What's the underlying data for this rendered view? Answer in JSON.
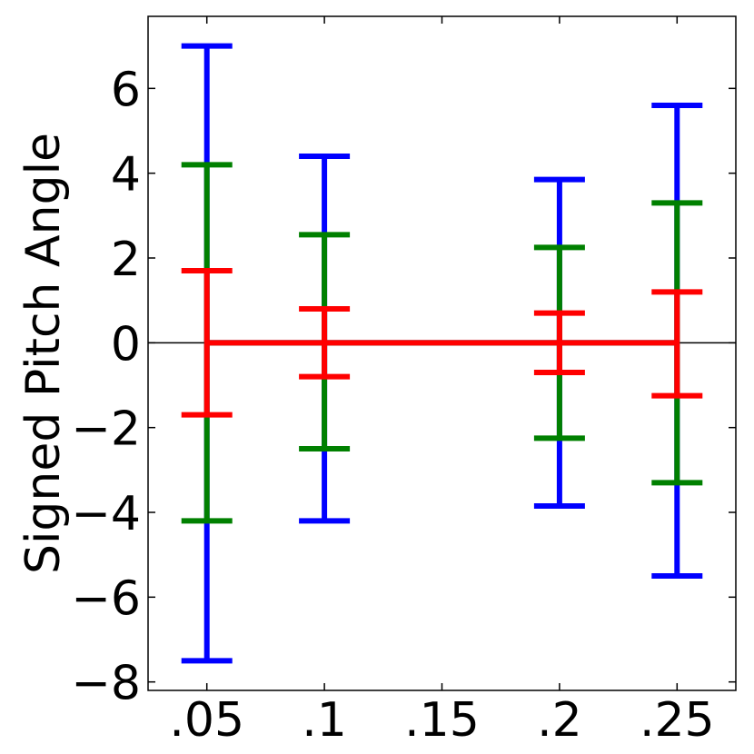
{
  "chart_data": {
    "type": "errorbar",
    "title": "",
    "xlabel": "",
    "ylabel": "Signed Pitch Angle",
    "xlim": [
      0.025,
      0.275
    ],
    "ylim": [
      -8.2,
      7.7
    ],
    "x_ticks": [
      {
        "value": 0.05,
        "label": ".05"
      },
      {
        "value": 0.1,
        "label": ".1"
      },
      {
        "value": 0.15,
        "label": ".15"
      },
      {
        "value": 0.2,
        "label": ".2"
      },
      {
        "value": 0.25,
        "label": ".25"
      }
    ],
    "y_ticks": [
      {
        "value": 6,
        "label": "6"
      },
      {
        "value": 4,
        "label": "4"
      },
      {
        "value": 2,
        "label": "2"
      },
      {
        "value": 0,
        "label": "0"
      },
      {
        "value": -2,
        "label": "−2"
      },
      {
        "value": -4,
        "label": "−4"
      },
      {
        "value": -6,
        "label": "−6"
      },
      {
        "value": -8,
        "label": "−8"
      }
    ],
    "zero_line": true,
    "grid": false,
    "x": [
      0.05,
      0.1,
      0.2,
      0.25
    ],
    "series": [
      {
        "color": "#0000ff",
        "center": [
          0,
          0,
          0,
          0
        ],
        "upper": [
          7.0,
          4.4,
          3.85,
          5.6
        ],
        "lower": [
          -7.5,
          -4.2,
          -3.85,
          -5.5
        ]
      },
      {
        "color": "#008000",
        "center": [
          0,
          0,
          0,
          0
        ],
        "upper": [
          4.2,
          2.55,
          2.25,
          3.3
        ],
        "lower": [
          -4.2,
          -2.5,
          -2.25,
          -3.3
        ]
      },
      {
        "color": "#ff0000",
        "center": [
          0,
          0,
          0,
          0
        ],
        "upper": [
          1.7,
          0.8,
          0.7,
          1.2
        ],
        "lower": [
          -1.7,
          -0.8,
          -0.7,
          -1.25
        ]
      }
    ]
  }
}
